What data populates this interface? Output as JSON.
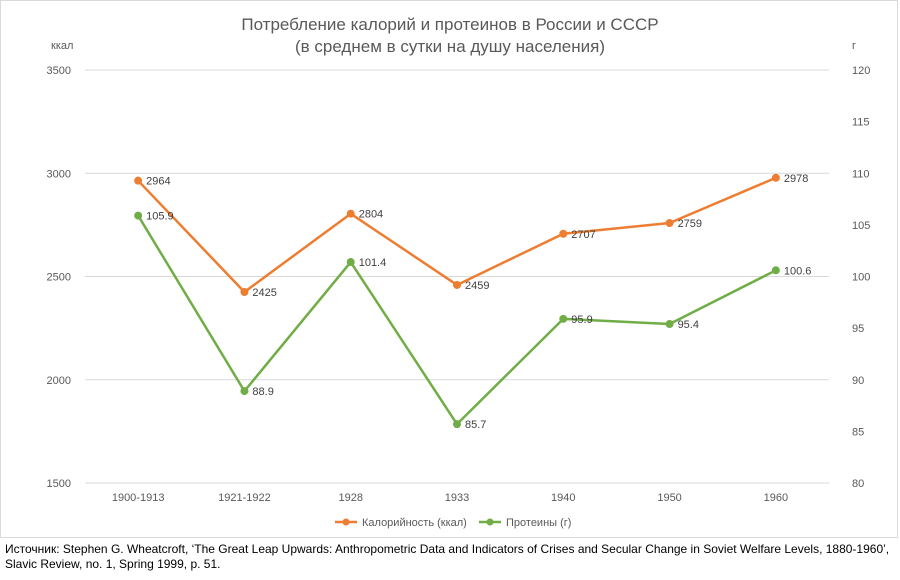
{
  "chart_data": {
    "type": "line",
    "title_line1": "Потребление калорий и протеинов в России и СССР",
    "title_line2": "(в среднем в сутки на душу населения)",
    "left_unit": "ккал",
    "right_unit": "г",
    "categories": [
      "1900-1913",
      "1921-1922",
      "1928",
      "1933",
      "1940",
      "1950",
      "1960"
    ],
    "y_left_ticks": [
      "1500",
      "2000",
      "2500",
      "3000",
      "3500"
    ],
    "y_right_ticks": [
      "80",
      "85",
      "90",
      "95",
      "100",
      "105",
      "110",
      "115",
      "120"
    ],
    "ylim_left": [
      1500,
      3500
    ],
    "ylim_right": [
      80,
      120
    ],
    "grid": true,
    "legend_position": "bottom",
    "series": [
      {
        "name": "Калорийность (ккал)",
        "axis": "left",
        "color": "#ED7D31",
        "values": [
          2964,
          2425,
          2804,
          2459,
          2707,
          2759,
          2978
        ],
        "labels": [
          "2964",
          "2425",
          "2804",
          "2459",
          "2707",
          "2759",
          "2978"
        ]
      },
      {
        "name": "Протеины (г)",
        "axis": "right",
        "color": "#70AD47",
        "values": [
          105.9,
          88.9,
          101.4,
          85.7,
          95.9,
          95.4,
          100.6
        ],
        "labels": [
          "105.9",
          "88.9",
          "101.4",
          "85.7",
          "95.9",
          "95.4",
          "100.6"
        ]
      }
    ]
  },
  "source_note": "Источник: Stephen G. Wheatcroft, ‘The Great Leap Upwards: Anthropometric Data and Indicators of Crises and Secular Change in Soviet Welfare Levels, 1880-1960’, Slavic Review, no. 1, Spring 1999, p. 51."
}
